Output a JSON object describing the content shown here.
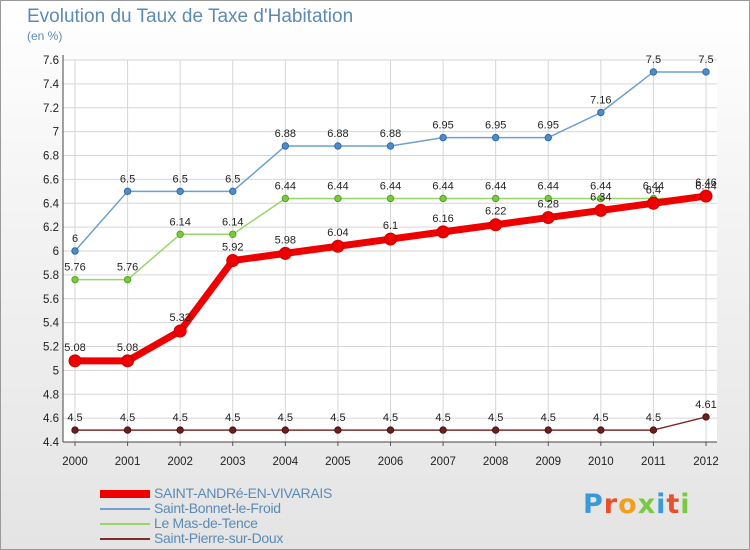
{
  "chart_data": {
    "type": "line",
    "title": "Evolution du Taux de Taxe d'Habitation",
    "unit_label": "(en %)",
    "x": [
      "2000",
      "2001",
      "2002",
      "2003",
      "2004",
      "2005",
      "2006",
      "2007",
      "2008",
      "2009",
      "2010",
      "2011",
      "2012"
    ],
    "y_ticks": [
      "4.4",
      "4.6",
      "4.8",
      "5",
      "5.2",
      "5.4",
      "5.6",
      "5.8",
      "6",
      "6.2",
      "6.4",
      "6.6",
      "6.8",
      "7",
      "7.2",
      "7.4",
      "7.6"
    ],
    "ylim": [
      4.4,
      7.6
    ],
    "grid": true,
    "legend_position": "bottom",
    "series": [
      {
        "name": "SAINT-ANDRé-EN-VIVARAIS",
        "color": "#ee0000",
        "values": [
          5.08,
          5.08,
          5.33,
          5.92,
          5.98,
          6.04,
          6.1,
          6.16,
          6.22,
          6.28,
          6.34,
          6.4,
          6.46
        ],
        "labels": [
          "5.08",
          "5.08",
          "5.33",
          "5.92",
          "5.98",
          "6.04",
          "6.1",
          "6.16",
          "6.22",
          "6.28",
          "6.34",
          "6.4",
          "6.46"
        ]
      },
      {
        "name": "Saint-Bonnet-le-Froid",
        "color": "#6fa0d0",
        "values": [
          6,
          6.5,
          6.5,
          6.5,
          6.88,
          6.88,
          6.88,
          6.95,
          6.95,
          6.95,
          7.16,
          7.5,
          7.5
        ],
        "labels": [
          "6",
          "6.5",
          "6.5",
          "6.5",
          "6.88",
          "6.88",
          "6.88",
          "6.95",
          "6.95",
          "6.95",
          "7.16",
          "7.5",
          "7.5"
        ]
      },
      {
        "name": "Le Mas-de-Tence",
        "color": "#99d66a",
        "values": [
          5.76,
          5.76,
          6.14,
          6.14,
          6.44,
          6.44,
          6.44,
          6.44,
          6.44,
          6.44,
          6.44,
          6.44,
          6.44
        ],
        "labels": [
          "5.76",
          "5.76",
          "6.14",
          "6.14",
          "6.44",
          "6.44",
          "6.44",
          "6.44",
          "6.44",
          "6.44",
          "6.44",
          "6.44",
          "6.44"
        ]
      },
      {
        "name": "Saint-Pierre-sur-Doux",
        "color": "#7a2e2e",
        "values": [
          4.5,
          4.5,
          4.5,
          4.5,
          4.5,
          4.5,
          4.5,
          4.5,
          4.5,
          4.5,
          4.5,
          4.5,
          4.61
        ],
        "labels": [
          "4.5",
          "4.5",
          "4.5",
          "4.5",
          "4.5",
          "4.5",
          "4.5",
          "4.5",
          "4.5",
          "4.5",
          "4.5",
          "4.5",
          "4.61"
        ]
      }
    ]
  },
  "logo": {
    "text": "Proxiti"
  }
}
